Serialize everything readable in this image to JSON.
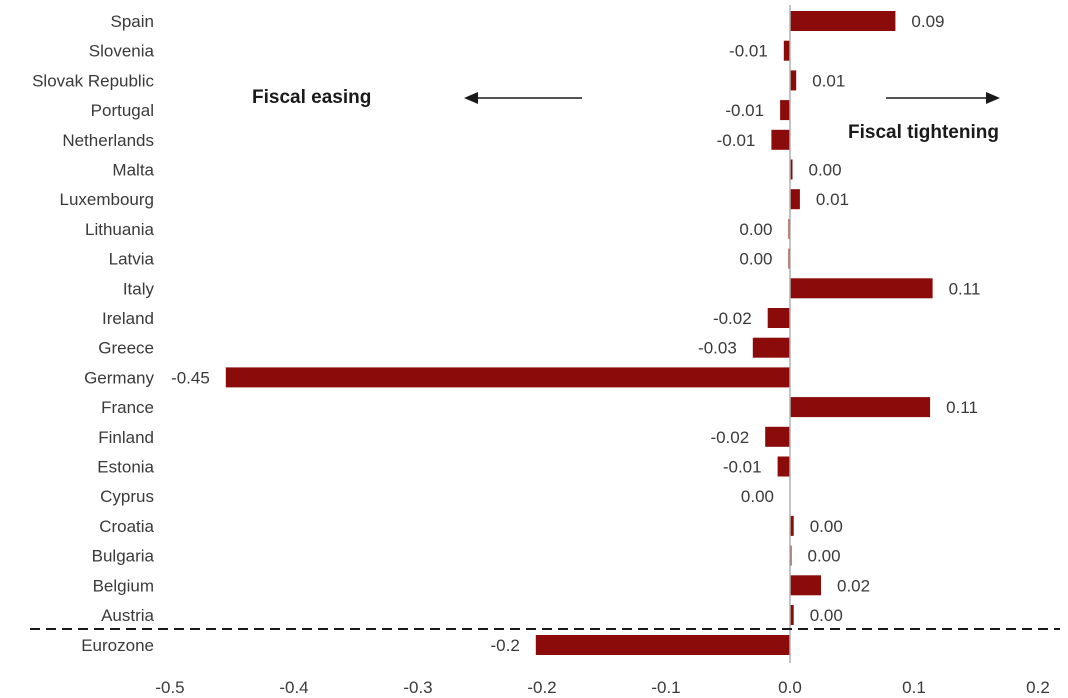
{
  "chart_data": {
    "type": "bar",
    "orientation": "horizontal",
    "bar_color": "#8B0A0A",
    "categories": [
      "Spain",
      "Slovenia",
      "Slovak Republic",
      "Portugal",
      "Netherlands",
      "Malta",
      "Luxembourg",
      "Lithuania",
      "Latvia",
      "Italy",
      "Ireland",
      "Greece",
      "Germany",
      "France",
      "Finland",
      "Estonia",
      "Cyprus",
      "Croatia",
      "Bulgaria",
      "Belgium",
      "Austria",
      "Eurozone"
    ],
    "values": [
      0.085,
      -0.005,
      0.005,
      -0.008,
      -0.015,
      0.002,
      0.008,
      -0.001,
      -0.001,
      0.115,
      -0.018,
      -0.03,
      -0.455,
      0.113,
      -0.02,
      -0.01,
      0.0,
      0.003,
      0.001,
      0.025,
      0.003,
      -0.205
    ],
    "value_labels": [
      "0.09",
      "-0.01",
      "0.01",
      "-0.01",
      "-0.01",
      "0.00",
      "0.01",
      "0.00",
      "0.00",
      "0.11",
      "-0.02",
      "-0.03",
      "-0.45",
      "0.11",
      "-0.02",
      "-0.01",
      "0.00",
      "0.00",
      "0.00",
      "0.02",
      "0.00",
      "-0.2"
    ],
    "x_ticks": [
      "-0.5",
      "-0.4",
      "-0.3",
      "-0.2",
      "-0.1",
      "0.0",
      "0.1",
      "0.2"
    ],
    "xlim": [
      -0.5,
      0.2
    ],
    "separator": "dashed line above Eurozone",
    "grid": false,
    "annotations": {
      "left": "Fiscal easing",
      "right": "Fiscal tightening"
    }
  }
}
